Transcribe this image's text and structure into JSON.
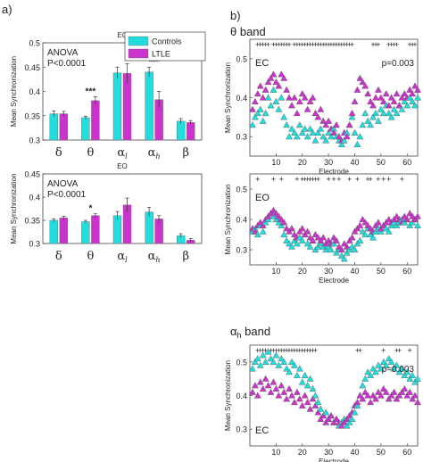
{
  "panel_labels": {
    "a": "a)",
    "b": "b)"
  },
  "panel_b_titles": {
    "theta": "θ band",
    "alpha_h_symbol": "α",
    "alpha_h_sub": "h",
    "alpha_h_rest": " band"
  },
  "colors": {
    "controls": "#22dddd",
    "ltle": "#cc33cc",
    "stroke": "#333333",
    "sig": "#555555"
  },
  "chart_data": [
    {
      "id": "bar_ec",
      "type": "bar",
      "title": "EC",
      "ylabel": "Mean Synchronization",
      "ylim": [
        0.3,
        0.5
      ],
      "yticks": [
        "0.3",
        "0.35",
        "0.4",
        "0.45",
        "0.5"
      ],
      "categories": [
        "δ",
        "θ",
        "α_l",
        "α_h",
        "β"
      ],
      "cat_main": [
        "δ",
        "θ",
        "α",
        "α",
        "β"
      ],
      "cat_sub": [
        "",
        "",
        "l",
        "h",
        ""
      ],
      "series": [
        {
          "name": "Controls",
          "values": [
            0.354,
            0.346,
            0.438,
            0.44,
            0.339
          ],
          "errors": [
            0.006,
            0.003,
            0.012,
            0.01,
            0.005
          ]
        },
        {
          "name": "LTLE",
          "values": [
            0.354,
            0.381,
            0.437,
            0.383,
            0.336
          ],
          "errors": [
            0.005,
            0.008,
            0.02,
            0.017,
            0.004
          ]
        }
      ],
      "significance": [
        "",
        "***",
        "",
        "***",
        ""
      ],
      "annotation": [
        "ANOVA",
        "P<0.0001"
      ],
      "legend_position": "top-right"
    },
    {
      "id": "bar_eo",
      "type": "bar",
      "title": "EO",
      "ylabel": "Mean Synchronization",
      "ylim": [
        0.3,
        0.45
      ],
      "yticks": [
        "0.3",
        "0.35",
        "0.4",
        "0.45"
      ],
      "categories": [
        "δ",
        "θ",
        "α_l",
        "α_h",
        "β"
      ],
      "cat_main": [
        "δ",
        "θ",
        "α",
        "α",
        "β"
      ],
      "cat_sub": [
        "",
        "",
        "l",
        "h",
        ""
      ],
      "series": [
        {
          "name": "Controls",
          "values": [
            0.35,
            0.347,
            0.36,
            0.368,
            0.317
          ],
          "errors": [
            0.003,
            0.003,
            0.009,
            0.01,
            0.004
          ]
        },
        {
          "name": "LTLE",
          "values": [
            0.355,
            0.36,
            0.383,
            0.353,
            0.307
          ],
          "errors": [
            0.004,
            0.004,
            0.015,
            0.007,
            0.004
          ]
        }
      ],
      "significance": [
        "",
        "*",
        "",
        "",
        ""
      ],
      "annotation": [
        "ANOVA",
        "P<0.0001"
      ]
    },
    {
      "id": "theta_ec",
      "type": "scatter",
      "label": "EC",
      "xlabel": "Electrode",
      "ylabel": "Mean Synchronization",
      "xlim": [
        0,
        64
      ],
      "ylim": [
        0.25,
        0.55
      ],
      "xticks": [
        10,
        20,
        30,
        40,
        50,
        60
      ],
      "yticks": [
        "0.3",
        "0.4",
        "0.5"
      ],
      "p_value": "p=0.003",
      "sig_electrodes": [
        3,
        4,
        5,
        6,
        7,
        9,
        10,
        11,
        12,
        13,
        14,
        15,
        17,
        18,
        19,
        20,
        21,
        22,
        23,
        24,
        25,
        26,
        27,
        28,
        29,
        30,
        31,
        32,
        33,
        34,
        35,
        36,
        37,
        38,
        39,
        47,
        48,
        49,
        53,
        54,
        55,
        56,
        61,
        62,
        63
      ],
      "series": [
        {
          "name": "Controls",
          "values": [
            0.33,
            0.35,
            0.36,
            0.37,
            0.34,
            0.36,
            0.4,
            0.38,
            0.42,
            0.39,
            0.37,
            0.4,
            0.35,
            0.33,
            0.3,
            0.32,
            0.31,
            0.3,
            0.33,
            0.31,
            0.32,
            0.3,
            0.32,
            0.31,
            0.29,
            0.31,
            0.32,
            0.3,
            0.29,
            0.31,
            0.3,
            0.32,
            0.3,
            0.29,
            0.28,
            0.29,
            0.31,
            0.33,
            0.35,
            0.31,
            0.28,
            0.3,
            0.33,
            0.36,
            0.34,
            0.33,
            0.35,
            0.36,
            0.34,
            0.37,
            0.36,
            0.38,
            0.36,
            0.35,
            0.37,
            0.36,
            0.38,
            0.37,
            0.39,
            0.38,
            0.4,
            0.39,
            0.38,
            0.4
          ]
        },
        {
          "name": "LTLE",
          "values": [
            0.37,
            0.39,
            0.41,
            0.43,
            0.4,
            0.42,
            0.44,
            0.45,
            0.46,
            0.44,
            0.43,
            0.46,
            0.45,
            0.42,
            0.4,
            0.38,
            0.4,
            0.36,
            0.39,
            0.41,
            0.4,
            0.37,
            0.39,
            0.4,
            0.36,
            0.35,
            0.37,
            0.34,
            0.33,
            0.34,
            0.32,
            0.31,
            0.33,
            0.3,
            0.29,
            0.31,
            0.3,
            0.33,
            0.36,
            0.39,
            0.42,
            0.45,
            0.44,
            0.43,
            0.41,
            0.39,
            0.38,
            0.4,
            0.42,
            0.4,
            0.39,
            0.41,
            0.38,
            0.4,
            0.39,
            0.41,
            0.38,
            0.4,
            0.41,
            0.4,
            0.42,
            0.41,
            0.43,
            0.42
          ]
        }
      ]
    },
    {
      "id": "theta_eo",
      "type": "scatter",
      "label": "EO",
      "xlabel": "Electrode",
      "ylabel": "Mean Synchronization",
      "xlim": [
        0,
        64
      ],
      "ylim": [
        0.25,
        0.55
      ],
      "xticks": [
        10,
        20,
        30,
        40,
        50,
        60
      ],
      "yticks": [
        "0.3",
        "0.4",
        "0.5"
      ],
      "sig_electrodes": [
        3,
        9,
        12,
        18,
        20,
        21,
        22,
        23,
        24,
        25,
        26,
        30,
        32,
        34,
        38,
        41,
        45,
        46,
        49,
        51,
        53,
        58
      ],
      "series": [
        {
          "name": "Controls",
          "values": [
            0.36,
            0.37,
            0.35,
            0.38,
            0.36,
            0.39,
            0.4,
            0.42,
            0.41,
            0.4,
            0.39,
            0.38,
            0.35,
            0.33,
            0.32,
            0.31,
            0.33,
            0.32,
            0.34,
            0.33,
            0.35,
            0.32,
            0.31,
            0.33,
            0.3,
            0.31,
            0.32,
            0.31,
            0.3,
            0.31,
            0.3,
            0.32,
            0.29,
            0.3,
            0.28,
            0.27,
            0.29,
            0.3,
            0.31,
            0.3,
            0.32,
            0.33,
            0.36,
            0.35,
            0.37,
            0.35,
            0.34,
            0.36,
            0.37,
            0.36,
            0.38,
            0.37,
            0.36,
            0.38,
            0.39,
            0.38,
            0.39,
            0.4,
            0.39,
            0.4,
            0.38,
            0.39,
            0.4,
            0.38
          ]
        },
        {
          "name": "LTLE",
          "values": [
            0.37,
            0.36,
            0.38,
            0.39,
            0.38,
            0.4,
            0.41,
            0.42,
            0.43,
            0.42,
            0.41,
            0.4,
            0.39,
            0.37,
            0.36,
            0.37,
            0.35,
            0.34,
            0.36,
            0.37,
            0.35,
            0.36,
            0.34,
            0.33,
            0.35,
            0.34,
            0.33,
            0.34,
            0.32,
            0.33,
            0.32,
            0.34,
            0.33,
            0.31,
            0.3,
            0.32,
            0.31,
            0.33,
            0.34,
            0.36,
            0.37,
            0.38,
            0.4,
            0.39,
            0.38,
            0.37,
            0.36,
            0.38,
            0.39,
            0.37,
            0.38,
            0.39,
            0.4,
            0.39,
            0.4,
            0.41,
            0.4,
            0.39,
            0.41,
            0.4,
            0.42,
            0.41,
            0.4,
            0.41
          ]
        }
      ]
    },
    {
      "id": "alpha_h_ec",
      "type": "scatter",
      "label": "EC",
      "xlabel": "Electrode",
      "ylabel": "Mean Synchronization",
      "xlim": [
        0,
        64
      ],
      "ylim": [
        0.25,
        0.55
      ],
      "xticks": [
        10,
        20,
        30,
        40,
        50,
        60
      ],
      "yticks": [
        "0.3",
        "0.4",
        "0.5"
      ],
      "p_value": "p=0.003",
      "sig_electrodes": [
        3,
        4,
        5,
        6,
        7,
        8,
        9,
        10,
        11,
        12,
        13,
        14,
        15,
        16,
        17,
        18,
        19,
        20,
        21,
        22,
        23,
        24,
        25,
        41,
        42,
        51,
        56,
        57,
        61
      ],
      "series": [
        {
          "name": "Controls",
          "values": [
            0.48,
            0.5,
            0.51,
            0.49,
            0.52,
            0.5,
            0.53,
            0.51,
            0.5,
            0.52,
            0.49,
            0.51,
            0.5,
            0.48,
            0.47,
            0.5,
            0.49,
            0.46,
            0.48,
            0.44,
            0.46,
            0.43,
            0.45,
            0.42,
            0.4,
            0.38,
            0.36,
            0.34,
            0.35,
            0.33,
            0.34,
            0.32,
            0.33,
            0.31,
            0.32,
            0.33,
            0.31,
            0.32,
            0.33,
            0.35,
            0.37,
            0.4,
            0.43,
            0.45,
            0.47,
            0.46,
            0.48,
            0.47,
            0.49,
            0.48,
            0.5,
            0.49,
            0.51,
            0.5,
            0.48,
            0.49,
            0.47,
            0.48,
            0.46,
            0.47,
            0.45,
            0.46,
            0.44,
            0.45
          ]
        },
        {
          "name": "LTLE",
          "values": [
            0.41,
            0.43,
            0.4,
            0.44,
            0.42,
            0.45,
            0.43,
            0.41,
            0.44,
            0.42,
            0.4,
            0.43,
            0.41,
            0.39,
            0.42,
            0.4,
            0.38,
            0.41,
            0.39,
            0.37,
            0.4,
            0.38,
            0.36,
            0.39,
            0.37,
            0.35,
            0.33,
            0.34,
            0.32,
            0.33,
            0.34,
            0.32,
            0.33,
            0.32,
            0.31,
            0.32,
            0.33,
            0.34,
            0.35,
            0.37,
            0.38,
            0.4,
            0.39,
            0.41,
            0.4,
            0.38,
            0.4,
            0.39,
            0.41,
            0.4,
            0.42,
            0.41,
            0.39,
            0.4,
            0.41,
            0.39,
            0.4,
            0.41,
            0.42,
            0.4,
            0.41,
            0.39,
            0.4,
            0.38
          ]
        }
      ]
    }
  ]
}
